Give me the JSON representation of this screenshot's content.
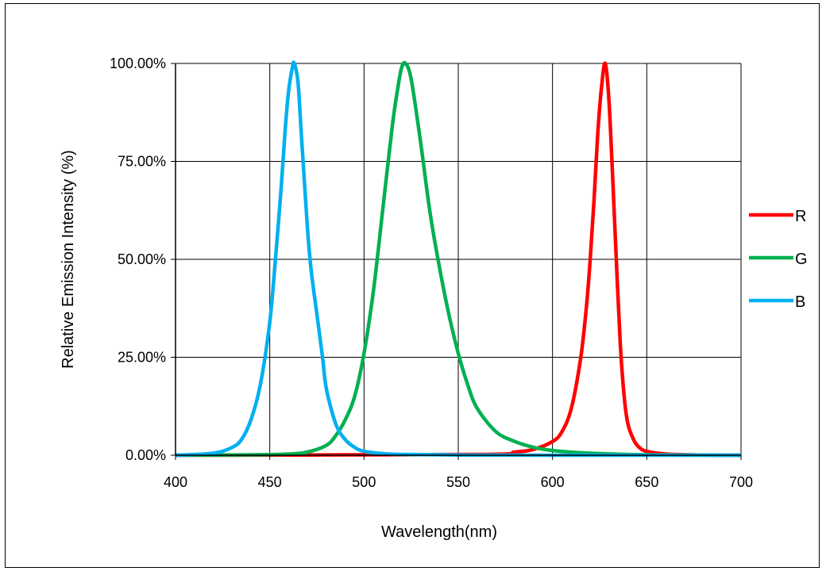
{
  "chart_data": {
    "type": "line",
    "title": "",
    "xlabel": "Wavelength(nm)",
    "ylabel": "Relative Emission Intensity (%)",
    "xlim": [
      400,
      700
    ],
    "ylim": [
      0,
      100
    ],
    "x_ticks": [
      400,
      450,
      500,
      550,
      600,
      650,
      700
    ],
    "x_tick_labels": [
      "400",
      "450",
      "500",
      "550",
      "600",
      "650",
      "700"
    ],
    "y_ticks": [
      0,
      25,
      50,
      75,
      100
    ],
    "y_tick_labels": [
      "0.00%",
      "25.00%",
      "50.00%",
      "75.00%",
      "100.00%"
    ],
    "grid": true,
    "legend_position": "right",
    "series": [
      {
        "name": "R",
        "color": "#ff0000",
        "x": [
          400,
          560,
          580,
          590,
          600,
          605,
          610,
          615,
          618,
          620,
          622,
          624,
          626,
          628,
          630,
          632,
          634,
          636,
          638,
          640,
          643,
          646,
          650,
          660,
          680,
          700
        ],
        "y": [
          0,
          0.2,
          0.8,
          1.5,
          3.5,
          6,
          12,
          25,
          38,
          50,
          65,
          82,
          94,
          100,
          90,
          70,
          48,
          28,
          15,
          8,
          4,
          2,
          1,
          0.3,
          0.05,
          0
        ]
      },
      {
        "name": "G",
        "color": "#00b050",
        "x": [
          400,
          440,
          460,
          470,
          480,
          485,
          490,
          495,
          500,
          505,
          510,
          515,
          518,
          520,
          522,
          525,
          530,
          535,
          540,
          545,
          550,
          555,
          560,
          570,
          580,
          590,
          600,
          620,
          650,
          700
        ],
        "y": [
          0,
          0.1,
          0.3,
          0.8,
          2.5,
          5,
          9,
          15,
          26,
          42,
          63,
          84,
          94,
          99,
          100,
          96,
          80,
          62,
          48,
          36,
          26,
          18,
          12,
          6,
          3.5,
          2,
          1.2,
          0.5,
          0.1,
          0
        ]
      },
      {
        "name": "B",
        "color": "#00b0f0",
        "x": [
          400,
          420,
          430,
          435,
          440,
          445,
          450,
          453,
          456,
          458,
          460,
          462,
          463,
          465,
          467,
          470,
          472,
          475,
          478,
          480,
          485,
          490,
          495,
          500,
          510,
          520,
          550,
          600,
          700
        ],
        "y": [
          0,
          0.5,
          2,
          4,
          9,
          18,
          34,
          50,
          68,
          82,
          93,
          99,
          100,
          95,
          80,
          58,
          47,
          36,
          25,
          17,
          8,
          4,
          2,
          1,
          0.4,
          0.2,
          0.05,
          0,
          0
        ]
      }
    ]
  }
}
